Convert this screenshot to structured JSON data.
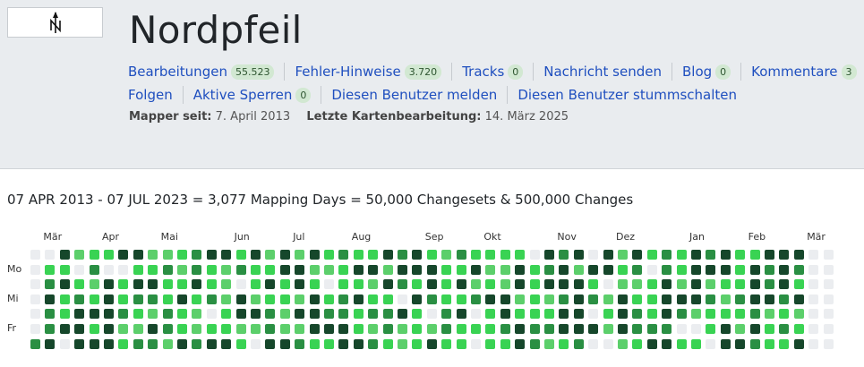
{
  "user": {
    "name": "Nordpfeil"
  },
  "nav_row1": [
    {
      "label": "Bearbeitungen",
      "badge": "55.523"
    },
    {
      "label": "Fehler-Hinweise",
      "badge": "3.720"
    },
    {
      "label": "Tracks",
      "badge": "0"
    },
    {
      "label": "Nachricht senden",
      "badge": null
    },
    {
      "label": "Blog",
      "badge": "0"
    },
    {
      "label": "Kommentare",
      "badge": "3"
    }
  ],
  "nav_row2": [
    {
      "label": "Folgen",
      "badge": null
    },
    {
      "label": "Aktive Sperren",
      "badge": "0"
    },
    {
      "label": "Diesen Benutzer melden",
      "badge": null
    },
    {
      "label": "Diesen Benutzer stummschalten",
      "badge": null
    }
  ],
  "meta": {
    "mapper_since_label": "Mapper seit:",
    "mapper_since_value": "7. April 2013",
    "last_edit_label": "Letzte Kartenbearbeitung:",
    "last_edit_value": "14. März 2025"
  },
  "summary": "07 APR 2013 - 07 JUL 2023 = 3,077 Mapping Days = 50,000 Changesets & 500,000 Changes",
  "heatmap": {
    "months": [
      {
        "label": "Mär",
        "week": 1
      },
      {
        "label": "Apr",
        "week": 5
      },
      {
        "label": "Mai",
        "week": 9
      },
      {
        "label": "Jun",
        "week": 14
      },
      {
        "label": "Jul",
        "week": 18
      },
      {
        "label": "Aug",
        "week": 22
      },
      {
        "label": "Sep",
        "week": 27
      },
      {
        "label": "Okt",
        "week": 31
      },
      {
        "label": "Nov",
        "week": 36
      },
      {
        "label": "Dez",
        "week": 40
      },
      {
        "label": "Jan",
        "week": 45
      },
      {
        "label": "Feb",
        "week": 49
      },
      {
        "label": "Mär",
        "week": 53
      }
    ],
    "day_labels": [
      {
        "label": "Mo",
        "row": 1
      },
      {
        "label": "Mi",
        "row": 3
      },
      {
        "label": "Fr",
        "row": 5
      }
    ],
    "weeks": 55,
    "colors": [
      "#ebedf0",
      "#39d353",
      "#5ccf6b",
      "#2a8f43",
      "#16472b"
    ]
  }
}
